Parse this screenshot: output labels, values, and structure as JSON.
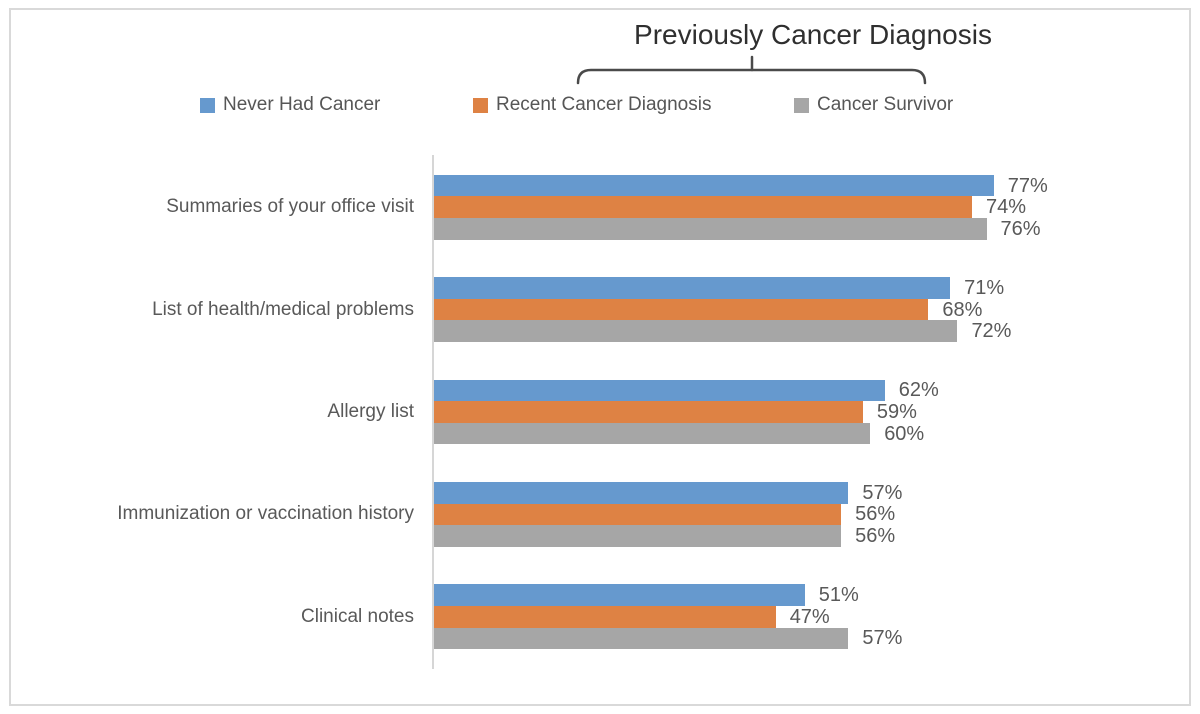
{
  "frame": {
    "border_color": "#d9d9d9"
  },
  "chart_data": {
    "type": "bar",
    "orientation": "horizontal",
    "title": "Previously Cancer Diagnosis",
    "title_note": "title sits above a bracket annotation spanning the two right legend entries",
    "categories": [
      "Summaries of your office visit",
      "List of health/medical problems",
      "Allergy list",
      "Immunization or vaccination history",
      "Clinical notes"
    ],
    "series": [
      {
        "name": "Never Had Cancer",
        "color": "#6699ce",
        "values": [
          77,
          71,
          62,
          57,
          51
        ]
      },
      {
        "name": "Recent Cancer Diagnosis",
        "color": "#de8244",
        "values": [
          74,
          68,
          59,
          56,
          47
        ]
      },
      {
        "name": "Cancer Survivor",
        "color": "#a6a6a6",
        "values": [
          76,
          72,
          60,
          56,
          57
        ]
      }
    ],
    "value_format": "percent",
    "data_labels": true,
    "legend_position": "top",
    "xlim": [
      0,
      100
    ],
    "grid": false,
    "axis_color": "#d6d6d6",
    "text_color": "#595959",
    "bracket_color": "#4a4a4a"
  }
}
